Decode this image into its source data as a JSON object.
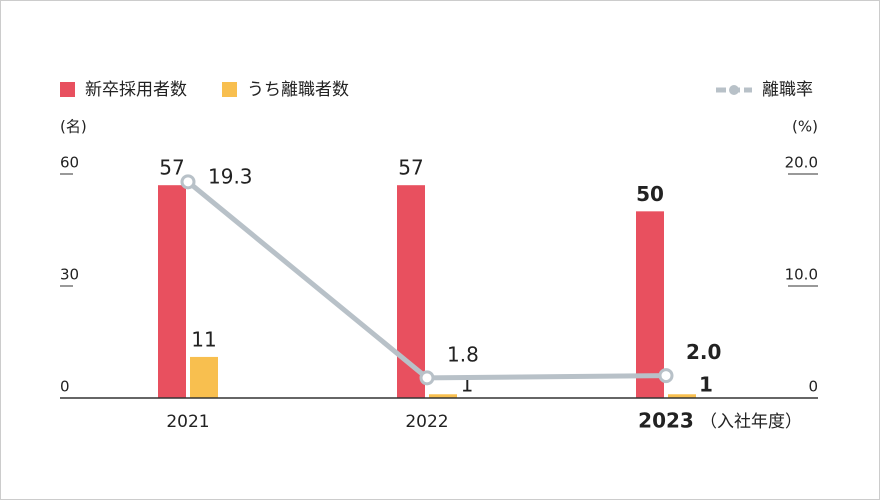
{
  "chart_data": {
    "type": "bar_line",
    "categories": [
      "2021",
      "2022",
      "2023"
    ],
    "x_note": "（入社年度）",
    "y_unit": "(名)",
    "y2_unit": "(%)",
    "ylim": [
      0,
      60
    ],
    "yticks": [
      0,
      30,
      60
    ],
    "y2lim": [
      0,
      20
    ],
    "y2ticks": [
      0,
      {
        "value": 10,
        "label": "10.0"
      },
      {
        "value": 20,
        "label": "20.0"
      }
    ],
    "series": [
      {
        "name": "新卒採用者数",
        "type": "bar",
        "color": "#e8505f",
        "values": [
          57,
          57,
          50
        ]
      },
      {
        "name": "うち離職者数",
        "type": "bar",
        "color": "#f8bf4f",
        "values": [
          11,
          1,
          1
        ]
      },
      {
        "name": "離職率",
        "type": "line",
        "axis": "y2",
        "color": "#b8c1c8",
        "values": [
          19.3,
          1.8,
          2.0
        ],
        "value_labels": [
          "19.3",
          "1.8",
          "2.0"
        ]
      }
    ]
  }
}
